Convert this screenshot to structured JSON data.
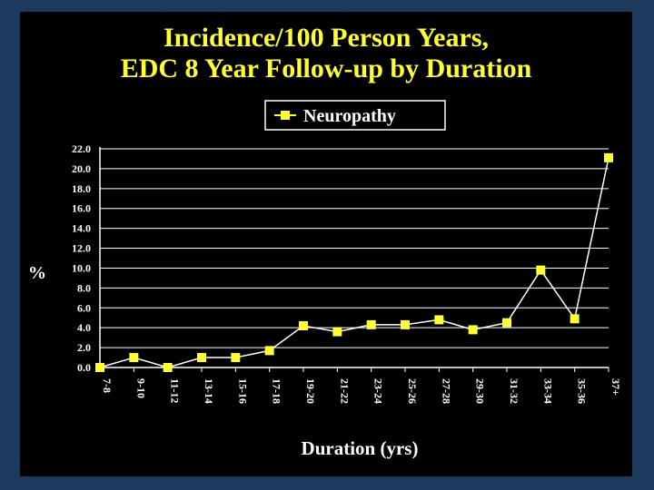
{
  "chart_data": {
    "type": "line",
    "title_lines": [
      "Incidence/100 Person Years,",
      "EDC 8 Year Follow-up by Duration"
    ],
    "xlabel": "Duration (yrs)",
    "ylabel": "%",
    "categories": [
      "7-8",
      "9-10",
      "11-12",
      "13-14",
      "15-16",
      "17-18",
      "19-20",
      "21-22",
      "23-24",
      "25-26",
      "27-28",
      "29-30",
      "31-32",
      "33-34",
      "35-36",
      "37+"
    ],
    "y_ticks": [
      "0.0",
      "2.0",
      "4.0",
      "6.0",
      "8.0",
      "10.0",
      "12.0",
      "14.0",
      "16.0",
      "18.0",
      "20.0",
      "22.0"
    ],
    "ylim": [
      0,
      22
    ],
    "grid": true,
    "legend_position": "top",
    "series": [
      {
        "name": "Neuropathy",
        "color": "#ffff33",
        "marker": "square",
        "values": [
          0.0,
          1.0,
          0.0,
          1.0,
          1.0,
          1.7,
          4.2,
          3.6,
          4.3,
          4.3,
          4.8,
          3.8,
          4.5,
          9.8,
          4.9,
          21.1
        ]
      }
    ]
  },
  "colors": {
    "background": "#000000",
    "frame": "#1b3a5c",
    "title": "#ffff33",
    "text": "#ffffff"
  }
}
